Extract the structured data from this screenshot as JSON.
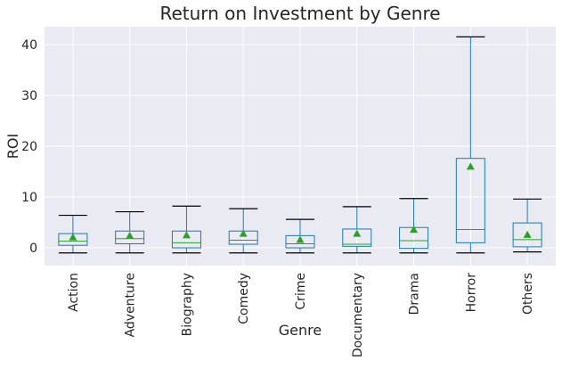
{
  "chart_data": {
    "type": "box",
    "title": "Return on Investment by Genre",
    "xlabel": "Genre",
    "ylabel": "ROI",
    "ylim": [
      -3.5,
      43.5
    ],
    "yticks": [
      0,
      10,
      20,
      30,
      40
    ],
    "grid": true,
    "legend": "none",
    "categories": [
      "Action",
      "Adventure",
      "Biography",
      "Comedy",
      "Crime",
      "Documentary",
      "Drama",
      "Horror",
      "Others"
    ],
    "boxes": [
      {
        "whisker_low": -1.0,
        "q1": 0.5,
        "median": 1.3,
        "q3": 2.8,
        "whisker_high": 6.4,
        "mean": 2.1
      },
      {
        "whisker_low": -1.0,
        "q1": 0.8,
        "median": 1.8,
        "q3": 3.3,
        "whisker_high": 7.1,
        "mean": 2.4
      },
      {
        "whisker_low": -1.0,
        "q1": 0.0,
        "median": 1.0,
        "q3": 3.3,
        "whisker_high": 8.2,
        "mean": 2.5
      },
      {
        "whisker_low": -1.0,
        "q1": 0.7,
        "median": 1.5,
        "q3": 3.3,
        "whisker_high": 7.7,
        "mean": 2.8
      },
      {
        "whisker_low": -1.0,
        "q1": 0.0,
        "median": 0.8,
        "q3": 2.4,
        "whisker_high": 5.6,
        "mean": 1.6
      },
      {
        "whisker_low": -1.0,
        "q1": 0.3,
        "median": 0.7,
        "q3": 3.7,
        "whisker_high": 8.1,
        "mean": 2.8
      },
      {
        "whisker_low": -1.0,
        "q1": -0.1,
        "median": 1.4,
        "q3": 4.0,
        "whisker_high": 9.7,
        "mean": 3.6
      },
      {
        "whisker_low": -1.0,
        "q1": 1.0,
        "median": 3.6,
        "q3": 17.6,
        "whisker_high": 41.5,
        "mean": 16.0
      },
      {
        "whisker_low": -0.8,
        "q1": 0.2,
        "median": 1.6,
        "q3": 4.9,
        "whisker_high": 9.6,
        "mean": 2.6
      }
    ],
    "colors": {
      "background": "#eaeaf2",
      "grid": "#ffffff",
      "box": "#1f77b4",
      "median": "#2ca02c",
      "mean_marker": "#2ca02c",
      "whisker_cap": "#000000",
      "text": "#262626"
    }
  }
}
